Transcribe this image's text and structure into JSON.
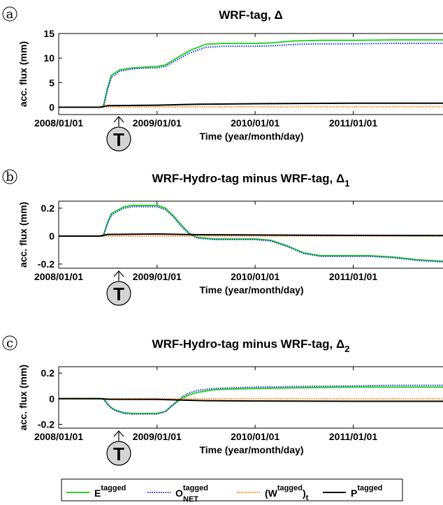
{
  "marker_letter": "T",
  "legend": {
    "entries": [
      {
        "base": "E",
        "sup": "tagged",
        "sub": "",
        "suffix": "",
        "paren": false,
        "color": "#2bd42b",
        "dash": "solid"
      },
      {
        "base": "O",
        "sup": "tagged",
        "sub": "NET",
        "suffix": "",
        "paren": false,
        "color": "#1f3fd6",
        "dash": "dotted"
      },
      {
        "base": "W",
        "sup": "tagged",
        "sub": "t",
        "suffix": "",
        "paren": true,
        "color": "#ff8c1a",
        "dash": "dotted"
      },
      {
        "base": "P",
        "sup": "tagged",
        "sub": "",
        "suffix": "",
        "paren": false,
        "color": "#000000",
        "dash": "solid"
      }
    ]
  },
  "chart_data": [
    {
      "type": "line",
      "panel_letter": "a",
      "title": "WRF-tag, Δ",
      "title_sub": "",
      "xlabel": "Time (year/month/day)",
      "ylabel": "acc. flux (mm)",
      "xlim": [
        "2008/01/01",
        "2011/12/01"
      ],
      "ylim": [
        -1.5,
        15
      ],
      "yticks": [
        0,
        5,
        10,
        15
      ],
      "xticks": [
        "2008/01/01",
        "2009/01/01",
        "2010/01/01",
        "2011/01/01"
      ],
      "grid": false,
      "series": [
        {
          "name": "E",
          "x": [
            "2008/01/01",
            "2008/06/01",
            "2008/06/15",
            "2008/07/01",
            "2008/07/15",
            "2008/08/15",
            "2008/10/01",
            "2008/12/01",
            "2009/01/01",
            "2009/02/01",
            "2009/03/15",
            "2009/05/01",
            "2009/07/01",
            "2009/09/01",
            "2010/01/01",
            "2010/03/01",
            "2010/06/01",
            "2010/09/01",
            "2011/01/01",
            "2011/06/01",
            "2011/12/01"
          ],
          "y": [
            0,
            0,
            0,
            4,
            6.5,
            7.6,
            8.0,
            8.2,
            8.3,
            8.6,
            10.0,
            11.5,
            12.8,
            13.0,
            13.0,
            13.1,
            13.5,
            13.6,
            13.6,
            13.7,
            13.7
          ]
        },
        {
          "name": "O_NET",
          "x": [
            "2008/01/01",
            "2008/06/01",
            "2008/06/15",
            "2008/07/01",
            "2008/07/15",
            "2008/08/15",
            "2008/10/01",
            "2008/12/01",
            "2009/01/01",
            "2009/02/01",
            "2009/03/15",
            "2009/05/01",
            "2009/07/01",
            "2009/09/01",
            "2010/01/01",
            "2010/03/01",
            "2010/06/01",
            "2010/09/01",
            "2011/01/01",
            "2011/06/01",
            "2011/12/01"
          ],
          "y": [
            0,
            0,
            0,
            3.7,
            6.1,
            7.3,
            7.8,
            8.0,
            8.0,
            8.3,
            9.6,
            11.0,
            12.2,
            12.4,
            12.4,
            12.5,
            12.8,
            12.9,
            12.9,
            13.0,
            13.0
          ]
        },
        {
          "name": "(W)_t",
          "x": [
            "2008/01/01",
            "2008/06/01",
            "2008/07/01",
            "2009/01/01",
            "2010/01/01",
            "2011/01/01",
            "2011/12/01"
          ],
          "y": [
            0,
            0,
            0.05,
            0.08,
            0.1,
            0.1,
            0.1
          ]
        },
        {
          "name": "P",
          "x": [
            "2008/01/01",
            "2008/06/01",
            "2008/07/01",
            "2009/01/01",
            "2009/06/01",
            "2010/01/01",
            "2011/01/01",
            "2011/12/01"
          ],
          "y": [
            0,
            0,
            0.3,
            0.4,
            0.6,
            0.7,
            0.8,
            0.8
          ]
        }
      ]
    },
    {
      "type": "line",
      "panel_letter": "b",
      "title": "WRF-Hydro-tag minus WRF-tag, Δ",
      "title_sub": "1",
      "xlabel": "Time (year/month/day)",
      "ylabel": "acc. flux (mm)",
      "xlim": [
        "2008/01/01",
        "2011/12/01"
      ],
      "ylim": [
        -0.23,
        0.25
      ],
      "yticks": [
        -0.2,
        0,
        0.2
      ],
      "xticks": [
        "2008/01/01",
        "2009/01/01",
        "2010/01/01",
        "2011/01/01"
      ],
      "grid": false,
      "series": [
        {
          "name": "E",
          "x": [
            "2008/01/01",
            "2008/06/01",
            "2008/06/15",
            "2008/07/01",
            "2008/07/15",
            "2008/08/01",
            "2008/09/01",
            "2008/10/01",
            "2008/12/01",
            "2009/01/01",
            "2009/02/01",
            "2009/03/01",
            "2009/04/01",
            "2009/05/01",
            "2009/06/01",
            "2009/07/01",
            "2009/08/01",
            "2009/09/01",
            "2010/01/01",
            "2010/03/01",
            "2010/05/01",
            "2010/07/01",
            "2010/09/01",
            "2011/01/01",
            "2011/03/01",
            "2011/06/01",
            "2011/09/01",
            "2011/12/01"
          ],
          "y": [
            0,
            0,
            0,
            0.1,
            0.16,
            0.18,
            0.21,
            0.22,
            0.22,
            0.22,
            0.2,
            0.15,
            0.08,
            0.02,
            -0.01,
            -0.015,
            -0.02,
            -0.02,
            -0.02,
            -0.03,
            -0.07,
            -0.12,
            -0.14,
            -0.14,
            -0.14,
            -0.15,
            -0.17,
            -0.18
          ]
        },
        {
          "name": "O_NET",
          "x": [
            "2008/01/01",
            "2008/06/01",
            "2008/06/15",
            "2008/07/01",
            "2008/07/15",
            "2008/08/01",
            "2008/09/01",
            "2008/10/01",
            "2008/12/01",
            "2009/01/01",
            "2009/02/01",
            "2009/03/01",
            "2009/04/01",
            "2009/05/01",
            "2009/06/01",
            "2009/07/01",
            "2009/08/01",
            "2009/09/01",
            "2010/01/01",
            "2010/03/01",
            "2010/05/01",
            "2010/07/01",
            "2010/09/01",
            "2011/01/01",
            "2011/03/01",
            "2011/06/01",
            "2011/09/01",
            "2011/12/01"
          ],
          "y": [
            0,
            0,
            0,
            0.09,
            0.15,
            0.17,
            0.2,
            0.21,
            0.21,
            0.21,
            0.19,
            0.14,
            0.07,
            0.015,
            -0.015,
            -0.02,
            -0.025,
            -0.025,
            -0.025,
            -0.035,
            -0.075,
            -0.125,
            -0.145,
            -0.145,
            -0.145,
            -0.155,
            -0.175,
            -0.185
          ]
        },
        {
          "name": "(W)_t",
          "x": [
            "2008/01/01",
            "2008/06/01",
            "2011/12/01"
          ],
          "y": [
            0,
            0,
            0
          ]
        },
        {
          "name": "P",
          "x": [
            "2008/01/01",
            "2008/06/01",
            "2008/07/01",
            "2009/01/01",
            "2009/06/01",
            "2010/01/01",
            "2011/01/01",
            "2011/12/01"
          ],
          "y": [
            0,
            0,
            0.012,
            0.015,
            0.01,
            0.008,
            0.005,
            0.004
          ]
        }
      ]
    },
    {
      "type": "line",
      "panel_letter": "c",
      "title": "WRF-Hydro-tag minus WRF-tag, Δ",
      "title_sub": "2",
      "xlabel": "Time (year/month/day)",
      "ylabel": "acc. flux (mm)",
      "xlim": [
        "2008/01/01",
        "2011/12/01"
      ],
      "ylim": [
        -0.23,
        0.25
      ],
      "yticks": [
        -0.2,
        0,
        0.2
      ],
      "xticks": [
        "2008/01/01",
        "2009/01/01",
        "2010/01/01",
        "2011/01/01"
      ],
      "grid": false,
      "series": [
        {
          "name": "E",
          "x": [
            "2008/01/01",
            "2008/06/01",
            "2008/06/15",
            "2008/07/01",
            "2008/07/15",
            "2008/08/01",
            "2008/09/01",
            "2008/10/01",
            "2008/12/01",
            "2009/01/01",
            "2009/02/01",
            "2009/03/01",
            "2009/04/01",
            "2009/05/01",
            "2009/06/01",
            "2009/08/01",
            "2009/10/01",
            "2010/01/01",
            "2010/06/01",
            "2011/01/01",
            "2011/06/01",
            "2011/12/01"
          ],
          "y": [
            0,
            0,
            0,
            -0.04,
            -0.07,
            -0.09,
            -0.11,
            -0.115,
            -0.115,
            -0.115,
            -0.1,
            -0.05,
            0,
            0.03,
            0.05,
            0.07,
            0.075,
            0.08,
            0.085,
            0.09,
            0.09,
            0.09
          ]
        },
        {
          "name": "O_NET",
          "x": [
            "2008/01/01",
            "2008/06/01",
            "2008/06/15",
            "2008/07/01",
            "2008/07/15",
            "2008/08/01",
            "2008/09/01",
            "2008/10/01",
            "2008/12/01",
            "2009/01/01",
            "2009/02/01",
            "2009/03/01",
            "2009/04/01",
            "2009/05/01",
            "2009/06/01",
            "2009/08/01",
            "2009/10/01",
            "2010/01/01",
            "2010/06/01",
            "2011/01/01",
            "2011/06/01",
            "2011/12/01"
          ],
          "y": [
            0,
            0,
            0,
            -0.045,
            -0.075,
            -0.095,
            -0.115,
            -0.12,
            -0.12,
            -0.12,
            -0.1,
            -0.045,
            0.01,
            0.045,
            0.065,
            0.08,
            0.085,
            0.09,
            0.095,
            0.1,
            0.105,
            0.105
          ]
        },
        {
          "name": "(W)_t",
          "x": [
            "2008/01/01",
            "2008/06/01",
            "2011/12/01"
          ],
          "y": [
            0,
            0,
            0
          ]
        },
        {
          "name": "P",
          "x": [
            "2008/01/01",
            "2008/06/01",
            "2008/07/01",
            "2009/01/01",
            "2009/04/01",
            "2009/07/01",
            "2010/01/01",
            "2011/01/01",
            "2011/12/01"
          ],
          "y": [
            0,
            0,
            -0.004,
            -0.005,
            -0.01,
            -0.015,
            -0.018,
            -0.02,
            -0.02
          ]
        }
      ]
    }
  ]
}
